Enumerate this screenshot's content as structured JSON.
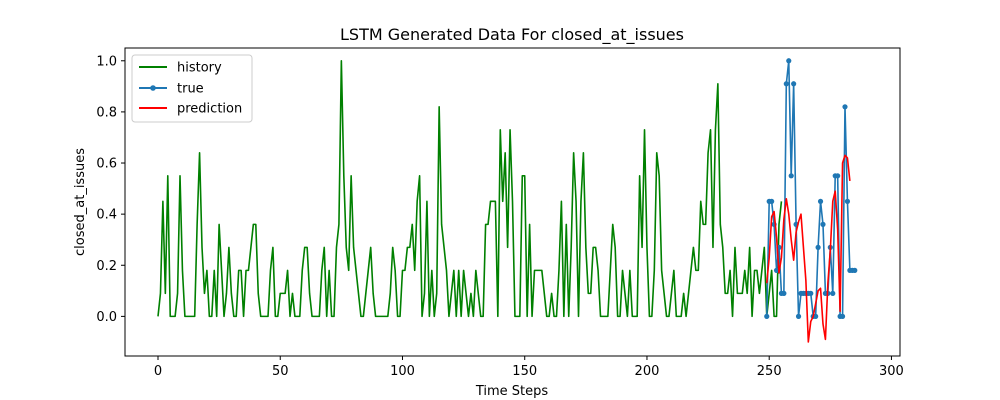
{
  "chart_data": {
    "type": "line",
    "title": "LSTM Generated Data For closed_at_issues",
    "xlabel": "Time Steps",
    "ylabel": "closed_at_issues",
    "xlim": [
      -13.5,
      303.5
    ],
    "ylim": [
      -0.155,
      1.05
    ],
    "xticks": [
      0,
      50,
      100,
      150,
      200,
      250,
      300
    ],
    "yticks": [
      0.0,
      0.2,
      0.4,
      0.6,
      0.8,
      1.0
    ],
    "xtick_labels": [
      "0",
      "50",
      "100",
      "150",
      "200",
      "250",
      "300"
    ],
    "ytick_labels": [
      "0.0",
      "0.2",
      "0.4",
      "0.6",
      "0.8",
      "1.0"
    ],
    "grid": false,
    "legend_position": "top-left",
    "series": [
      {
        "name": "history",
        "color": "#008000",
        "marker": "none",
        "x_start": 0,
        "values": [
          0.0,
          0.09,
          0.45,
          0.09,
          0.55,
          0.0,
          0.0,
          0.0,
          0.09,
          0.55,
          0.18,
          0.0,
          0.0,
          0.0,
          0.0,
          0.0,
          0.36,
          0.64,
          0.27,
          0.09,
          0.18,
          0.0,
          0.0,
          0.18,
          0.0,
          0.36,
          0.18,
          0.0,
          0.09,
          0.27,
          0.09,
          0.0,
          0.0,
          0.18,
          0.18,
          0.0,
          0.18,
          0.18,
          0.27,
          0.36,
          0.36,
          0.09,
          0.0,
          0.0,
          0.0,
          0.0,
          0.18,
          0.27,
          0.0,
          0.0,
          0.09,
          0.09,
          0.09,
          0.18,
          0.0,
          0.09,
          0.0,
          0.0,
          0.0,
          0.18,
          0.27,
          0.27,
          0.09,
          0.0,
          0.0,
          0.0,
          0.0,
          0.18,
          0.27,
          0.0,
          0.18,
          0.0,
          0.0,
          0.27,
          0.36,
          1.0,
          0.55,
          0.27,
          0.18,
          0.55,
          0.27,
          0.18,
          0.09,
          0.0,
          0.0,
          0.09,
          0.18,
          0.27,
          0.09,
          0.0,
          0.0,
          0.0,
          0.0,
          0.0,
          0.0,
          0.09,
          0.27,
          0.18,
          0.0,
          0.0,
          0.18,
          0.18,
          0.27,
          0.27,
          0.36,
          0.18,
          0.45,
          0.55,
          0.0,
          0.09,
          0.45,
          0.0,
          0.18,
          0.0,
          0.09,
          0.82,
          0.36,
          0.27,
          0.18,
          0.0,
          0.09,
          0.18,
          0.0,
          0.18,
          0.0,
          0.18,
          0.09,
          0.0,
          0.09,
          0.0,
          0.18,
          0.09,
          0.0,
          0.0,
          0.36,
          0.36,
          0.45,
          0.45,
          0.45,
          0.0,
          0.73,
          0.45,
          0.64,
          0.27,
          0.73,
          0.45,
          0.0,
          0.0,
          0.0,
          0.55,
          0.55,
          0.0,
          0.36,
          0.0,
          0.18,
          0.18,
          0.18,
          0.18,
          0.09,
          0.0,
          0.0,
          0.09,
          0.0,
          0.0,
          0.18,
          0.45,
          0.0,
          0.36,
          0.0,
          0.27,
          0.64,
          0.45,
          0.0,
          0.45,
          0.64,
          0.27,
          0.09,
          0.09,
          0.27,
          0.27,
          0.18,
          0.0,
          0.0,
          0.0,
          0.0,
          0.18,
          0.36,
          0.27,
          0.0,
          0.0,
          0.18,
          0.09,
          0.0,
          0.18,
          0.0,
          0.0,
          0.0,
          0.55,
          0.27,
          0.73,
          0.27,
          0.0,
          0.0,
          0.18,
          0.64,
          0.55,
          0.18,
          0.09,
          0.0,
          0.0,
          0.09,
          0.18,
          0.0,
          0.0,
          0.0,
          0.09,
          0.0,
          0.09,
          0.18,
          0.27,
          0.18,
          0.18,
          0.45,
          0.36,
          0.36,
          0.64,
          0.73,
          0.27,
          0.73,
          0.91,
          0.36,
          0.27,
          0.09,
          0.09,
          0.18,
          0.0,
          0.27,
          0.09,
          0.09,
          0.09,
          0.18,
          0.09,
          0.27,
          0.0,
          0.18,
          0.18,
          0.09,
          0.18,
          0.27,
          0.0,
          0.09,
          0.18,
          0.0,
          0.0,
          0.36,
          0.45
        ]
      },
      {
        "name": "true",
        "color": "#1f77b4",
        "marker": "circle",
        "x_start": 249,
        "values": [
          0.0,
          0.45,
          0.45,
          0.36,
          0.18,
          0.27,
          0.09,
          0.09,
          0.91,
          1.0,
          0.55,
          0.91,
          0.36,
          0.0,
          0.09,
          0.09,
          0.09,
          0.09,
          0.09,
          0.0,
          0.0,
          0.27,
          0.45,
          0.36,
          0.09,
          0.09,
          0.27,
          0.09,
          0.55,
          0.55,
          0.0,
          0.0,
          0.82,
          0.45,
          0.18,
          0.18,
          0.18
        ]
      },
      {
        "name": "prediction",
        "color": "#ff0000",
        "marker": "none",
        "x_start": 249,
        "values": [
          0.13,
          0.23,
          0.39,
          0.41,
          0.31,
          0.17,
          0.23,
          0.38,
          0.46,
          0.4,
          0.3,
          0.22,
          0.33,
          0.37,
          0.4,
          0.27,
          0.14,
          -0.1,
          -0.02,
          0.0,
          0.05,
          0.1,
          0.11,
          -0.03,
          -0.09,
          0.13,
          0.26,
          0.45,
          0.49,
          0.34,
          0.02,
          0.6,
          0.63,
          0.62,
          0.53
        ]
      }
    ]
  }
}
